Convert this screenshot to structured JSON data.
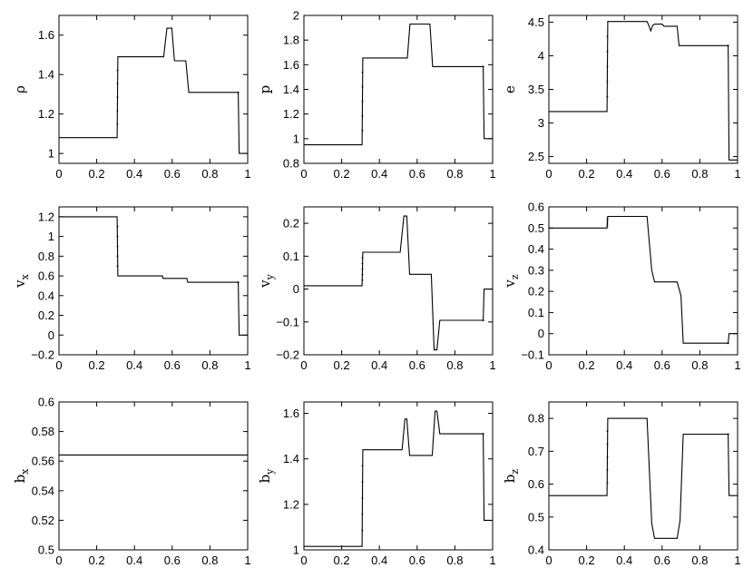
{
  "chart_data": [
    {
      "id": "rho",
      "type": "line",
      "ylabel": "ρ",
      "ylabel_sub": "",
      "xlim": [
        0,
        1
      ],
      "ylim": [
        0.95,
        1.7
      ],
      "xticks": [
        0,
        0.2,
        0.4,
        0.6,
        0.8,
        1
      ],
      "xtick_labels": [
        "0",
        "0.2",
        "0.4",
        "0.6",
        "0.8",
        "1"
      ],
      "yticks": [
        1,
        1.2,
        1.4,
        1.6
      ],
      "ytick_labels": [
        "1",
        "1.2",
        "1.4",
        "1.6"
      ],
      "series": [
        {
          "x": [
            0,
            0.308,
            0.312,
            0.555,
            0.572,
            0.598,
            0.612,
            0.672,
            0.688,
            0.95,
            0.955,
            1
          ],
          "y": [
            1.08,
            1.08,
            1.49,
            1.49,
            1.635,
            1.635,
            1.47,
            1.47,
            1.31,
            1.31,
            1.0,
            1.0
          ]
        }
      ],
      "transition_x": [
        0.31,
        0.95
      ]
    },
    {
      "id": "p",
      "type": "line",
      "ylabel": "p",
      "ylabel_sub": "",
      "xlim": [
        0,
        1
      ],
      "ylim": [
        0.8,
        2.0
      ],
      "xticks": [
        0,
        0.2,
        0.4,
        0.6,
        0.8,
        1
      ],
      "xtick_labels": [
        "0",
        "0.2",
        "0.4",
        "0.6",
        "0.8",
        "1"
      ],
      "yticks": [
        0.8,
        1,
        1.2,
        1.4,
        1.6,
        1.8,
        2
      ],
      "ytick_labels": [
        "0.8",
        "1",
        "1.2",
        "1.4",
        "1.6",
        "1.8",
        "2"
      ],
      "series": [
        {
          "x": [
            0,
            0.308,
            0.312,
            0.548,
            0.562,
            0.668,
            0.682,
            0.95,
            0.955,
            1
          ],
          "y": [
            0.95,
            0.95,
            1.655,
            1.655,
            1.93,
            1.93,
            1.585,
            1.585,
            1.0,
            1.0
          ]
        }
      ],
      "transition_x": [
        0.31,
        0.95
      ]
    },
    {
      "id": "e",
      "type": "line",
      "ylabel": "e",
      "ylabel_sub": "",
      "xlim": [
        0,
        1
      ],
      "ylim": [
        2.4,
        4.6
      ],
      "xticks": [
        0,
        0.2,
        0.4,
        0.6,
        0.8,
        1
      ],
      "xtick_labels": [
        "0",
        "0.2",
        "0.4",
        "0.6",
        "0.8",
        "1"
      ],
      "yticks": [
        2.5,
        3,
        3.5,
        4,
        4.5
      ],
      "ytick_labels": [
        "2.5",
        "3",
        "3.5",
        "4",
        "4.5"
      ],
      "series": [
        {
          "x": [
            0,
            0.308,
            0.312,
            0.52,
            0.53,
            0.54,
            0.55,
            0.56,
            0.6,
            0.61,
            0.68,
            0.69,
            0.95,
            0.955,
            1
          ],
          "y": [
            3.17,
            3.17,
            4.51,
            4.51,
            4.45,
            4.37,
            4.45,
            4.47,
            4.47,
            4.44,
            4.44,
            4.15,
            4.15,
            2.45,
            2.45
          ]
        }
      ],
      "transition_x": [
        0.31,
        0.95
      ]
    },
    {
      "id": "vx",
      "type": "line",
      "ylabel": "v",
      "ylabel_sub": "x",
      "xlim": [
        0,
        1
      ],
      "ylim": [
        -0.2,
        1.3
      ],
      "xticks": [
        0,
        0.2,
        0.4,
        0.6,
        0.8,
        1
      ],
      "xtick_labels": [
        "0",
        "0.2",
        "0.4",
        "0.6",
        "0.8",
        "1"
      ],
      "yticks": [
        -0.2,
        0,
        0.2,
        0.4,
        0.6,
        0.8,
        1,
        1.2
      ],
      "ytick_labels": [
        "−0.2",
        "0",
        "0.2",
        "0.4",
        "0.6",
        "0.8",
        "1",
        "1.2"
      ],
      "series": [
        {
          "x": [
            0,
            0.308,
            0.312,
            0.548,
            0.552,
            0.678,
            0.682,
            0.95,
            0.955,
            1
          ],
          "y": [
            1.2,
            1.2,
            0.6,
            0.6,
            0.575,
            0.575,
            0.535,
            0.535,
            0.0,
            0.0
          ]
        }
      ],
      "transition_x": [
        0.31,
        0.95
      ]
    },
    {
      "id": "vy",
      "type": "line",
      "ylabel": "v",
      "ylabel_sub": "y",
      "xlim": [
        0,
        1
      ],
      "ylim": [
        -0.2,
        0.25
      ],
      "xticks": [
        0,
        0.2,
        0.4,
        0.6,
        0.8,
        1
      ],
      "xtick_labels": [
        "0",
        "0.2",
        "0.4",
        "0.6",
        "0.8",
        "1"
      ],
      "yticks": [
        -0.2,
        -0.1,
        0,
        0.1,
        0.2
      ],
      "ytick_labels": [
        "−0.2",
        "−0.1",
        "0",
        "0.1",
        "0.2"
      ],
      "series": [
        {
          "x": [
            0,
            0.308,
            0.312,
            0.51,
            0.53,
            0.545,
            0.56,
            0.675,
            0.69,
            0.705,
            0.72,
            0.95,
            0.955,
            1
          ],
          "y": [
            0.01,
            0.01,
            0.112,
            0.112,
            0.222,
            0.222,
            0.045,
            0.045,
            -0.185,
            -0.185,
            -0.095,
            -0.095,
            0.0,
            0.0
          ]
        }
      ],
      "transition_x": [
        0.31,
        0.95
      ]
    },
    {
      "id": "vz",
      "type": "line",
      "ylabel": "v",
      "ylabel_sub": "z",
      "xlim": [
        0,
        1
      ],
      "ylim": [
        -0.1,
        0.6
      ],
      "xticks": [
        0,
        0.2,
        0.4,
        0.6,
        0.8,
        1
      ],
      "xtick_labels": [
        "0",
        "0.2",
        "0.4",
        "0.6",
        "0.8",
        "1"
      ],
      "yticks": [
        -0.1,
        0,
        0.1,
        0.2,
        0.3,
        0.4,
        0.5,
        0.6
      ],
      "ytick_labels": [
        "−0.1",
        "0",
        "0.1",
        "0.2",
        "0.3",
        "0.4",
        "0.5",
        "0.6"
      ],
      "series": [
        {
          "x": [
            0,
            0.308,
            0.312,
            0.52,
            0.545,
            0.56,
            0.68,
            0.7,
            0.712,
            0.95,
            0.955,
            1
          ],
          "y": [
            0.5,
            0.5,
            0.555,
            0.555,
            0.3,
            0.245,
            0.245,
            0.18,
            -0.045,
            -0.045,
            0.0,
            0.0
          ]
        }
      ],
      "transition_x": [
        0.31,
        0.95
      ]
    },
    {
      "id": "bx",
      "type": "line",
      "ylabel": "b",
      "ylabel_sub": "x",
      "xlim": [
        0,
        1
      ],
      "ylim": [
        0.5,
        0.6
      ],
      "xticks": [
        0,
        0.2,
        0.4,
        0.6,
        0.8,
        1
      ],
      "xtick_labels": [
        "0",
        "0.2",
        "0.4",
        "0.6",
        "0.8",
        "1"
      ],
      "yticks": [
        0.5,
        0.52,
        0.54,
        0.56,
        0.58,
        0.6
      ],
      "ytick_labels": [
        "0.5",
        "0.52",
        "0.54",
        "0.56",
        "0.58",
        "0.6"
      ],
      "series": [
        {
          "x": [
            0,
            1
          ],
          "y": [
            0.5642,
            0.5642
          ]
        }
      ],
      "transition_x": []
    },
    {
      "id": "by",
      "type": "line",
      "ylabel": "b",
      "ylabel_sub": "y",
      "xlim": [
        0,
        1
      ],
      "ylim": [
        1.0,
        1.65
      ],
      "xticks": [
        0,
        0.2,
        0.4,
        0.6,
        0.8,
        1
      ],
      "xtick_labels": [
        "0",
        "0.2",
        "0.4",
        "0.6",
        "0.8",
        "1"
      ],
      "yticks": [
        1,
        1.2,
        1.4,
        1.6
      ],
      "ytick_labels": [
        "1",
        "1.2",
        "1.4",
        "1.6"
      ],
      "series": [
        {
          "x": [
            0,
            0.308,
            0.312,
            0.52,
            0.535,
            0.545,
            0.56,
            0.68,
            0.695,
            0.705,
            0.72,
            0.95,
            0.955,
            1
          ],
          "y": [
            1.015,
            1.015,
            1.44,
            1.44,
            1.575,
            1.575,
            1.415,
            1.415,
            1.61,
            1.61,
            1.51,
            1.51,
            1.13,
            1.13
          ]
        }
      ],
      "transition_x": [
        0.31,
        0.95
      ]
    },
    {
      "id": "bz",
      "type": "line",
      "ylabel": "b",
      "ylabel_sub": "z",
      "xlim": [
        0,
        1
      ],
      "ylim": [
        0.4,
        0.85
      ],
      "xticks": [
        0,
        0.2,
        0.4,
        0.6,
        0.8,
        1
      ],
      "xtick_labels": [
        "0",
        "0.2",
        "0.4",
        "0.6",
        "0.8",
        "1"
      ],
      "yticks": [
        0.4,
        0.5,
        0.6,
        0.7,
        0.8
      ],
      "ytick_labels": [
        "0.4",
        "0.5",
        "0.6",
        "0.7",
        "0.8"
      ],
      "series": [
        {
          "x": [
            0,
            0.308,
            0.312,
            0.52,
            0.545,
            0.56,
            0.68,
            0.695,
            0.712,
            0.95,
            0.955,
            1
          ],
          "y": [
            0.565,
            0.565,
            0.8,
            0.8,
            0.48,
            0.435,
            0.435,
            0.49,
            0.752,
            0.752,
            0.565,
            0.565
          ]
        }
      ],
      "transition_x": [
        0.31,
        0.95
      ]
    }
  ]
}
